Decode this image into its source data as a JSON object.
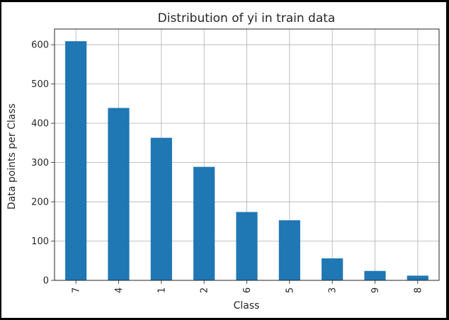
{
  "chart_data": {
    "type": "bar",
    "title": "Distribution of yi in train data",
    "xlabel": "Class",
    "ylabel": "Data points per Class",
    "categories": [
      "7",
      "4",
      "1",
      "2",
      "6",
      "5",
      "3",
      "9",
      "8"
    ],
    "values": [
      609,
      439,
      363,
      289,
      174,
      153,
      56,
      24,
      12
    ],
    "ylim": [
      0,
      640
    ],
    "yticks": [
      0,
      100,
      200,
      300,
      400,
      500,
      600
    ],
    "grid": true,
    "bar_color": "#1f77b4"
  }
}
